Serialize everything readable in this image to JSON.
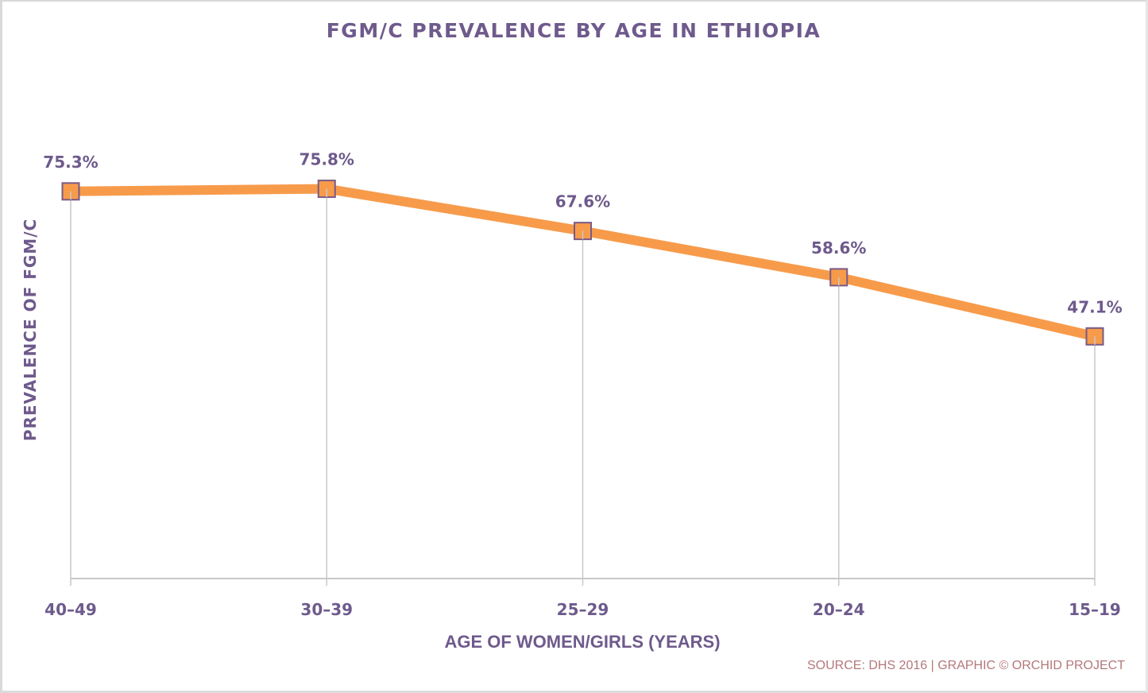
{
  "chart_data": {
    "type": "line",
    "title": "FGM/C PREVALENCE BY AGE IN ETHIOPIA",
    "xlabel": "AGE OF WOMEN/GIRLS (YEARS)",
    "ylabel": "PREVALENCE OF FGM/C",
    "categories": [
      "40–49",
      "30–39",
      "25–29",
      "20–24",
      "15–19"
    ],
    "series": [
      {
        "name": "FGM/C prevalence",
        "values": [
          75.3,
          75.8,
          67.6,
          58.6,
          47.1
        ],
        "data_labels": [
          "75.3%",
          "75.8%",
          "67.6%",
          "58.6%",
          "47.1%"
        ],
        "color": "#f79b4b",
        "marker": "square",
        "marker_fill": "#f79b4b",
        "marker_edge": "#7a5a86"
      }
    ],
    "ylim": [
      0,
      100
    ],
    "y_unit": "%",
    "grid": false,
    "drop_lines": true,
    "legend": "none",
    "source": "SOURCE: DHS 2016 | GRAPHIC © ORCHID PROJECT",
    "colors": {
      "text": "#6e5a8c",
      "line": "#f79b4b",
      "axis": "#c8c8c8",
      "source": "#b4787a"
    }
  }
}
